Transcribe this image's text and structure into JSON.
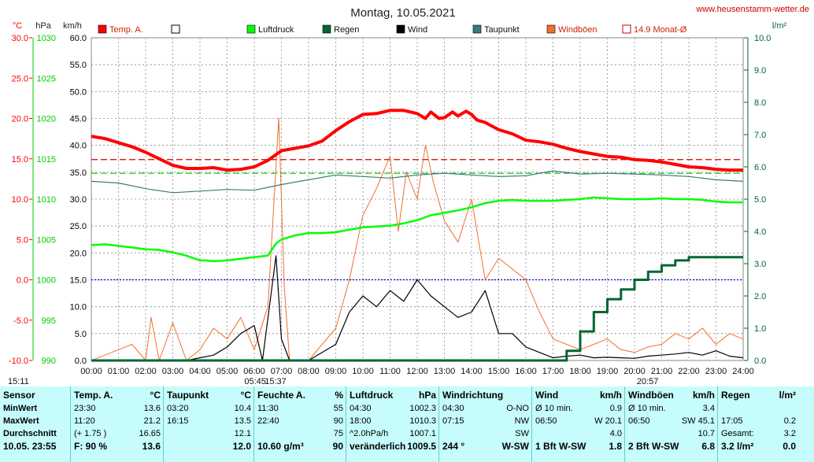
{
  "chart_data": {
    "type": "line",
    "title": "Montag, 10.05.2021",
    "website": "www.heusenstamm-wetter.de",
    "axes": {
      "temp": {
        "label": "°C",
        "ticks": [
          "30.0",
          "25.0",
          "20.0",
          "15.0",
          "10.0",
          "5.0",
          "0.0",
          "-5.0",
          "-10.0"
        ],
        "color": "#ff0000"
      },
      "pressure": {
        "label": "hPa",
        "ticks": [
          "1030",
          "1025",
          "1020",
          "1015",
          "1010",
          "1005",
          "1000",
          "995",
          "990"
        ],
        "color": "#00cc00"
      },
      "wind": {
        "label": "km/h",
        "ticks": [
          "60.0",
          "55.0",
          "50.0",
          "45.0",
          "40.0",
          "35.0",
          "30.0",
          "25.0",
          "20.0",
          "15.0",
          "10.0",
          "5.0",
          "0.0"
        ],
        "color": "#000000",
        "ylim": [
          0,
          60
        ]
      },
      "rain": {
        "label": "l/m²",
        "ticks": [
          "10.0",
          "9.0",
          "8.0",
          "7.0",
          "6.0",
          "5.0",
          "4.0",
          "3.0",
          "2.0",
          "1.0",
          "0.0"
        ],
        "color": "#006633"
      },
      "x_ticks": [
        "00:00",
        "01:00",
        "02:00",
        "03:00",
        "04:00",
        "05:00",
        "06:00",
        "07:00",
        "08:00",
        "09:00",
        "10:00",
        "11:00",
        "12:00",
        "13:00",
        "14:00",
        "15:00",
        "16:00",
        "17:00",
        "18:00",
        "19:00",
        "20:00",
        "21:00",
        "22:00",
        "23:00",
        "24:00"
      ],
      "x_annotations": [
        {
          "text": "15:11",
          "hour": 0
        },
        {
          "text": "05:45",
          "hour": 5.75
        },
        {
          "text": "15:37",
          "hour": 6.5
        },
        {
          "text": "20:57",
          "hour": 20.2
        }
      ]
    },
    "legend": [
      {
        "name": "Temp. A.",
        "color": "#ff0000",
        "style": "filled"
      },
      {
        "name": "",
        "color": "#ffffff",
        "style": "box"
      },
      {
        "name": "Luftdruck",
        "color": "#00ff00",
        "style": "filled"
      },
      {
        "name": "Regen",
        "color": "#006633",
        "style": "filled"
      },
      {
        "name": "Wind",
        "color": "#000000",
        "style": "filled"
      },
      {
        "name": "Taupunkt",
        "color": "#3a7a7a",
        "style": "filled"
      },
      {
        "name": "Windböen",
        "color": "#f07030",
        "style": "filled"
      },
      {
        "name": "14.9 Monat-Ø",
        "color": "#cc0000",
        "style": "box"
      }
    ],
    "reference_lines": [
      {
        "name": "14.9 Monat-Ø",
        "temp": 14.9,
        "color": "#cc0000"
      },
      {
        "name": "pressure 1013",
        "pressure": 1013.2,
        "color": "#00cc00"
      },
      {
        "name": "freezing",
        "temp": 0,
        "color": "#0000cc"
      }
    ],
    "series": [
      {
        "name": "Temp. A.",
        "unit": "°C",
        "color": "#ff0000",
        "x": [
          0,
          0.5,
          1,
          1.5,
          2,
          2.5,
          3,
          3.5,
          4,
          4.5,
          5,
          5.5,
          6,
          6.5,
          7,
          7.5,
          8,
          8.5,
          9,
          9.5,
          10,
          10.5,
          11,
          11.5,
          12,
          12.3,
          12.5,
          12.8,
          13,
          13.3,
          13.5,
          13.8,
          14,
          14.2,
          14.5,
          15,
          15.5,
          16,
          16.5,
          17,
          17.5,
          18,
          18.5,
          19,
          19.5,
          20,
          20.5,
          21,
          21.5,
          22,
          22.5,
          23,
          23.5,
          24
        ],
        "y": [
          17.8,
          17.5,
          17.0,
          16.5,
          15.8,
          15.0,
          14.2,
          13.8,
          13.8,
          13.9,
          13.6,
          13.7,
          14.0,
          14.8,
          16.0,
          16.3,
          16.6,
          17.2,
          18.5,
          19.6,
          20.5,
          20.6,
          21.0,
          21.0,
          20.6,
          20.0,
          20.8,
          20.0,
          20.1,
          20.8,
          20.3,
          20.9,
          20.5,
          19.8,
          19.5,
          18.6,
          18.1,
          17.3,
          17.1,
          16.8,
          16.3,
          15.9,
          15.6,
          15.3,
          15.2,
          14.9,
          14.8,
          14.6,
          14.3,
          14.0,
          13.9,
          13.7,
          13.6,
          13.6
        ]
      },
      {
        "name": "Taupunkt",
        "unit": "°C",
        "color": "#3a7a7a",
        "x": [
          0,
          1,
          2,
          3,
          4,
          5,
          6,
          7,
          8,
          9,
          10,
          11,
          12,
          13,
          14,
          15,
          16,
          17,
          18,
          19,
          20,
          21,
          22,
          23,
          24
        ],
        "y": [
          12.2,
          12.0,
          11.3,
          10.8,
          11.0,
          11.2,
          11.1,
          11.8,
          12.4,
          13.0,
          12.8,
          12.6,
          13.0,
          13.2,
          13.0,
          12.8,
          12.9,
          13.5,
          13.1,
          13.2,
          13.1,
          13.0,
          12.8,
          12.4,
          12.2
        ]
      },
      {
        "name": "Luftdruck",
        "unit": "hPa",
        "color": "#00ff00",
        "x": [
          0,
          0.5,
          1,
          1.5,
          2,
          2.5,
          3,
          3.5,
          4,
          4.2,
          4.5,
          5,
          5.5,
          6,
          6.5,
          6.8,
          7,
          7.5,
          8,
          8.5,
          9,
          9.5,
          10,
          10.5,
          11,
          11.5,
          12,
          12.5,
          13,
          13.5,
          14,
          14.5,
          15,
          15.5,
          16,
          16.5,
          17,
          17.5,
          18,
          18.5,
          19,
          19.5,
          20,
          20.5,
          21,
          21.5,
          22,
          22.5,
          23,
          23.5,
          24
        ],
        "y": [
          1004.3,
          1004.4,
          1004.2,
          1004.0,
          1003.8,
          1003.7,
          1003.4,
          1003.0,
          1002.4,
          1002.4,
          1002.3,
          1002.4,
          1002.6,
          1002.8,
          1003.0,
          1004.5,
          1005.0,
          1005.5,
          1005.8,
          1005.8,
          1005.9,
          1006.2,
          1006.5,
          1006.6,
          1006.7,
          1007.0,
          1007.4,
          1008.0,
          1008.3,
          1008.6,
          1009.0,
          1009.5,
          1009.8,
          1009.9,
          1009.8,
          1009.8,
          1009.8,
          1009.9,
          1010.0,
          1010.2,
          1010.1,
          1010.0,
          1010.0,
          1010.0,
          1010.1,
          1010.0,
          1010.0,
          1009.9,
          1009.7,
          1009.6,
          1009.6
        ]
      },
      {
        "name": "Wind",
        "unit": "km/h",
        "color": "#000000",
        "x": [
          0,
          3.5,
          4.5,
          5,
          5.5,
          6,
          6.3,
          6.8,
          7.0,
          7.3,
          8,
          9,
          9.5,
          10,
          10.5,
          11,
          11.5,
          12,
          12.5,
          13,
          13.5,
          14,
          14.5,
          15,
          15.5,
          16,
          16.5,
          17,
          17.5,
          18,
          18.5,
          19,
          19.5,
          20,
          20.5,
          21,
          21.5,
          22,
          22.5,
          23,
          23.5,
          24
        ],
        "y": [
          0,
          0,
          1.0,
          2.5,
          5.0,
          6.5,
          0,
          19.5,
          4.0,
          0,
          0,
          3.0,
          9.0,
          12.0,
          10.0,
          13.0,
          11.0,
          15.0,
          12.0,
          10.0,
          8.0,
          9.0,
          13.0,
          5.0,
          5.0,
          2.5,
          1.5,
          0.5,
          0.8,
          1.0,
          0.5,
          0.6,
          0.5,
          0.4,
          0.8,
          1.0,
          1.2,
          1.5,
          1.0,
          1.8,
          0.8,
          0.5
        ]
      },
      {
        "name": "Windböen",
        "unit": "km/h",
        "color": "#f07030",
        "x": [
          0,
          1,
          1.5,
          2,
          2.2,
          2.5,
          3,
          3.5,
          4,
          4.5,
          5,
          5.5,
          6,
          6.5,
          6.9,
          7.1,
          7.3,
          8,
          9,
          9.5,
          10,
          10.5,
          11,
          11.3,
          11.6,
          12,
          12.3,
          12.6,
          13,
          13.5,
          14,
          14.5,
          15,
          15.5,
          16,
          16.5,
          17,
          17.5,
          18,
          18.5,
          19,
          19.5,
          20,
          20.5,
          21,
          21.5,
          22,
          22.5,
          23,
          23.5,
          24
        ],
        "y": [
          0,
          2,
          3,
          0,
          8,
          0,
          7,
          0,
          2,
          6,
          4,
          8,
          2,
          10,
          45.1,
          14,
          0,
          0,
          6,
          15,
          27,
          32,
          38,
          24,
          35,
          30,
          40,
          33,
          26,
          22,
          30,
          15,
          19,
          17,
          15,
          9,
          4,
          3,
          2,
          3,
          4,
          2,
          1.5,
          2.5,
          3,
          5,
          4,
          6,
          3,
          5,
          4
        ]
      },
      {
        "name": "Regen",
        "unit": "l/m²",
        "color": "#006633",
        "x": [
          0,
          17.2,
          17.5,
          18,
          18.5,
          19,
          19.5,
          20,
          20.5,
          21,
          21.5,
          22,
          23,
          24
        ],
        "y": [
          0,
          0,
          0.3,
          0.9,
          1.5,
          1.9,
          2.2,
          2.5,
          2.75,
          2.95,
          3.1,
          3.2,
          3.2,
          3.2
        ]
      }
    ]
  },
  "table": {
    "sensor": {
      "header": "Sensor",
      "rows": [
        "MinWert",
        "MaxWert",
        "Durchschnitt",
        "10.05. 23:55"
      ]
    },
    "temp": {
      "header": "Temp. A.",
      "unit": "°C",
      "rows": [
        [
          "23:30",
          "13.6"
        ],
        [
          "11:20",
          "21.2"
        ],
        [
          "(+ 1.75 )",
          "16.65"
        ],
        [
          "F: 90 %",
          "13.6"
        ]
      ]
    },
    "taupunkt": {
      "header": "Taupunkt",
      "unit": "°C",
      "rows": [
        [
          "03:20",
          "10.4"
        ],
        [
          "16:15",
          "13.5"
        ],
        [
          "",
          "12.1"
        ],
        [
          "",
          "12.0"
        ]
      ]
    },
    "feuchte": {
      "header": "Feuchte A.",
      "unit": "%",
      "rows": [
        [
          "11:30",
          "55"
        ],
        [
          "22:40",
          "90"
        ],
        [
          "",
          "75"
        ],
        [
          "10.60 g/m³",
          "90"
        ]
      ]
    },
    "luftdruck": {
      "header": "Luftdruck",
      "unit": "hPa",
      "rows": [
        [
          "04:30",
          "1002.3"
        ],
        [
          "18:00",
          "1010.3"
        ],
        [
          "^2.0hPa/h",
          "1007.1"
        ],
        [
          "veränderlich",
          "1009.5"
        ]
      ]
    },
    "windrichtung": {
      "header": "Windrichtung",
      "rows": [
        [
          "04:30",
          "O-NO"
        ],
        [
          "07:15",
          "NW"
        ],
        [
          "",
          "SW"
        ],
        [
          "244 °",
          "W-SW"
        ]
      ]
    },
    "wind": {
      "header": "Wind",
      "unit": "km/h",
      "rows": [
        [
          "Ø 10 min.",
          "0.9"
        ],
        [
          "06:50",
          "W 20.1"
        ],
        [
          "",
          "4.0"
        ],
        [
          "1 Bft W-SW",
          "1.8"
        ]
      ]
    },
    "windboeen": {
      "header": "Windböen",
      "unit": "km/h",
      "rows": [
        [
          "Ø 10 min.",
          "3.4"
        ],
        [
          "06:50",
          "SW 45.1"
        ],
        [
          "",
          "10.7"
        ],
        [
          "2 Bft W-SW",
          "6.8"
        ]
      ]
    },
    "regen": {
      "header": "Regen",
      "unit": "l/m²",
      "rows": [
        [
          "17:05",
          "0.2"
        ],
        [
          "Gesamt:",
          "3.2"
        ],
        [
          "3.2 l/m²",
          "0.0"
        ]
      ]
    }
  }
}
